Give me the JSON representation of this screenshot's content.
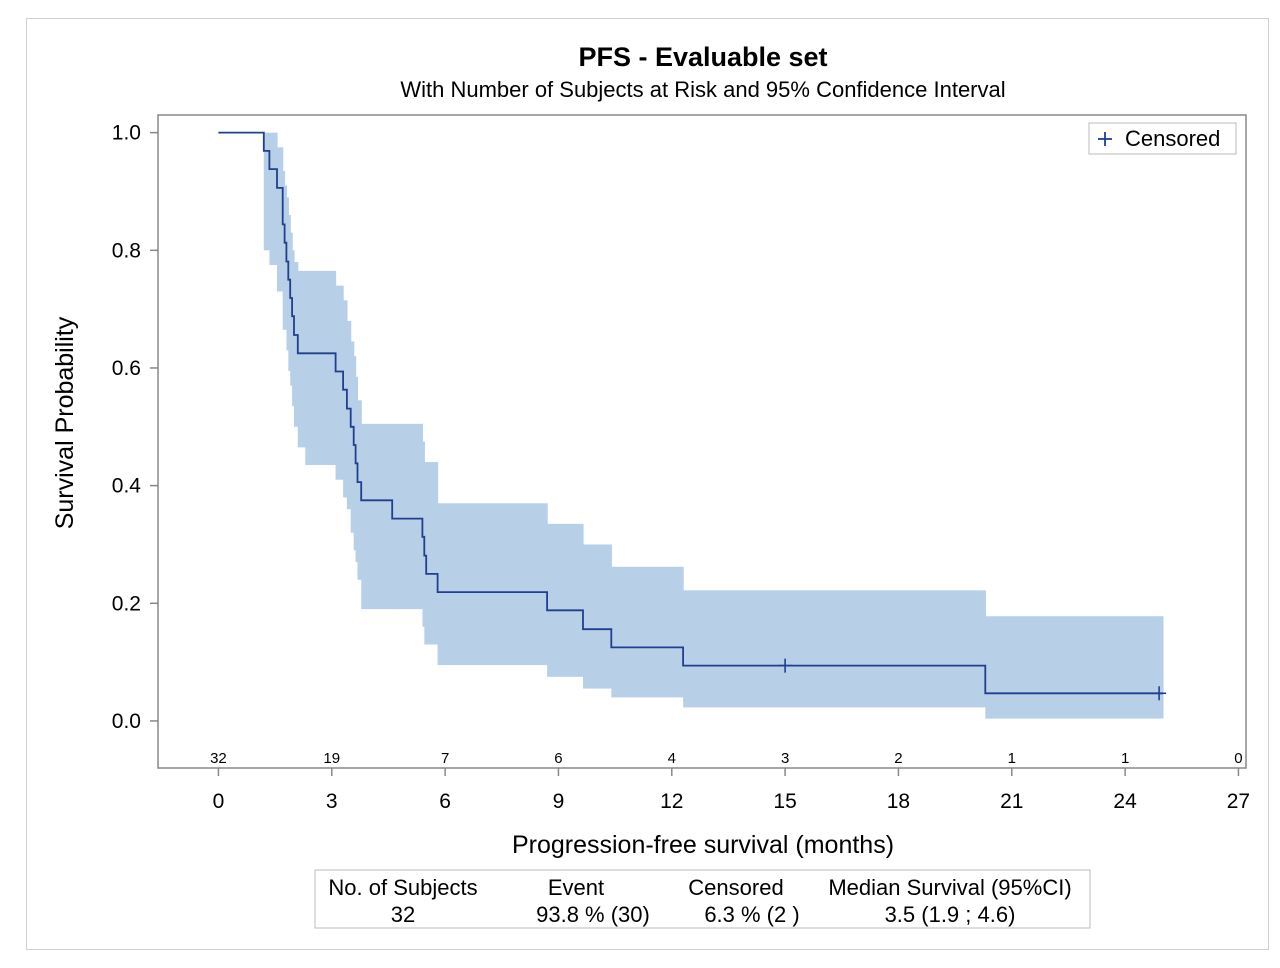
{
  "chart_data": {
    "type": "line",
    "title": "PFS - Evaluable set",
    "subtitle": "With Number of Subjects at Risk and 95% Confidence Interval",
    "xlabel": "Progression-free survival (months)",
    "ylabel": "Survival Probability",
    "xlim": [
      -1.6,
      27.2
    ],
    "ylim": [
      -0.08,
      1.03
    ],
    "xticks": [
      0,
      3,
      6,
      9,
      12,
      15,
      18,
      21,
      24,
      27
    ],
    "xtick_labels": [
      "0",
      "3",
      "6",
      "9",
      "12",
      "15",
      "18",
      "21",
      "24",
      "27"
    ],
    "yticks": [
      0.0,
      0.2,
      0.4,
      0.6,
      0.8,
      1.0
    ],
    "ytick_labels": [
      "0.0",
      "0.2",
      "0.4",
      "0.6",
      "0.8",
      "1.0"
    ],
    "grid": false,
    "legend": {
      "position": "top-right",
      "entries": [
        {
          "label": "Censored",
          "marker": "+"
        }
      ]
    },
    "series": [
      {
        "name": "Survival",
        "color": "#1f3f8f",
        "step_times": [
          0,
          1.2,
          1.35,
          1.55,
          1.7,
          1.75,
          1.8,
          1.85,
          1.9,
          1.95,
          2.0,
          2.1,
          2.3,
          3.1,
          3.3,
          3.4,
          3.5,
          3.58,
          3.63,
          3.68,
          3.78,
          4.6,
          5.4,
          5.45,
          5.5,
          5.8,
          8.7,
          9.65,
          10.4,
          12.3,
          20.3,
          24.9
        ],
        "survival": [
          1.0,
          0.969,
          0.938,
          0.906,
          0.844,
          0.813,
          0.781,
          0.75,
          0.719,
          0.688,
          0.656,
          0.625,
          0.625,
          0.594,
          0.563,
          0.531,
          0.5,
          0.469,
          0.438,
          0.406,
          0.375,
          0.344,
          0.313,
          0.281,
          0.25,
          0.219,
          0.188,
          0.156,
          0.125,
          0.094,
          0.047,
          0.047
        ],
        "ci_lower": [
          1.0,
          0.8,
          0.775,
          0.73,
          0.665,
          0.665,
          0.63,
          0.595,
          0.57,
          0.535,
          0.5,
          0.465,
          0.435,
          0.41,
          0.38,
          0.36,
          0.32,
          0.29,
          0.27,
          0.24,
          0.19,
          0.19,
          0.16,
          0.13,
          0.13,
          0.095,
          0.075,
          0.055,
          0.04,
          0.023,
          0.004,
          0.004
        ],
        "ci_upper": [
          1.0,
          1.0,
          1.0,
          0.975,
          0.935,
          0.91,
          0.89,
          0.86,
          0.83,
          0.8,
          0.78,
          0.765,
          0.765,
          0.74,
          0.715,
          0.68,
          0.645,
          0.62,
          0.585,
          0.545,
          0.505,
          0.505,
          0.475,
          0.44,
          0.44,
          0.37,
          0.335,
          0.3,
          0.262,
          0.222,
          0.178,
          0.178
        ],
        "end_time": 25.0
      }
    ],
    "censored": [
      {
        "time": 15.0,
        "survival": 0.094
      },
      {
        "time": 24.9,
        "survival": 0.047
      }
    ],
    "at_risk": {
      "times": [
        0,
        3,
        6,
        9,
        12,
        15,
        18,
        21,
        24,
        27
      ],
      "counts": [
        "32",
        "19",
        "7",
        "6",
        "4",
        "3",
        "2",
        "1",
        "1",
        "0"
      ]
    },
    "summary_table": {
      "headers": [
        "No. of Subjects",
        "Event",
        "Censored",
        "Median Survival (95%CI)"
      ],
      "values": [
        "32",
        "93.8 % (30)",
        "6.3 % (2 )",
        "3.5 (1.9 ; 4.6)"
      ]
    },
    "colors": {
      "line": "#1f3f8f",
      "band": "#b8cfe8",
      "axis": "#888888"
    }
  }
}
